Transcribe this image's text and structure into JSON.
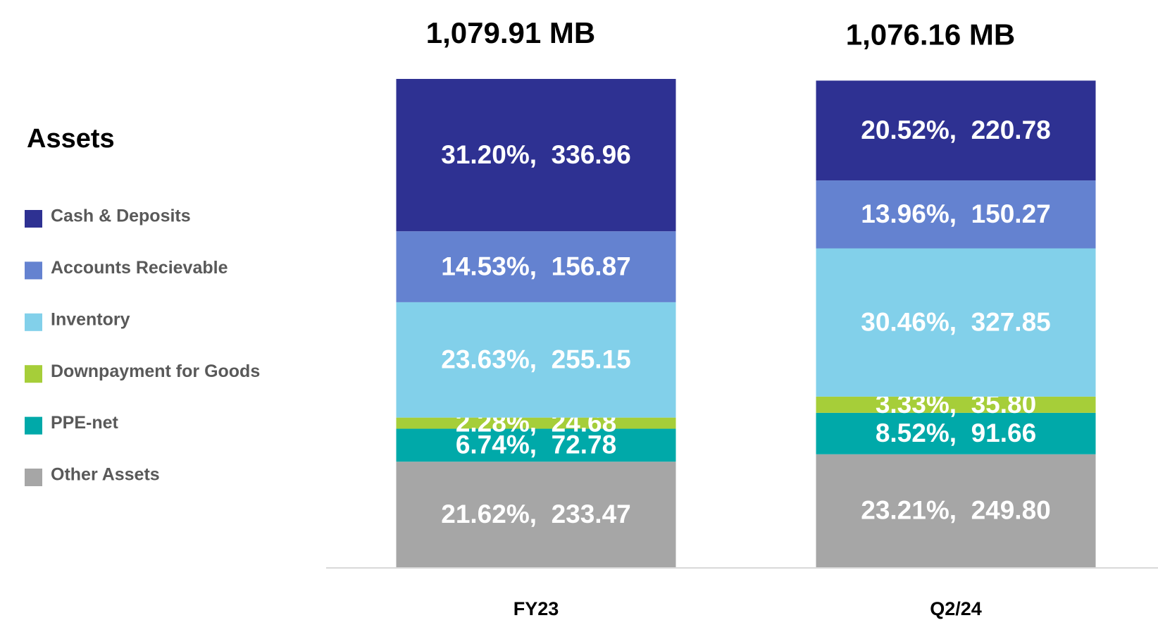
{
  "chart_data": {
    "type": "stacked_bar",
    "legend_title": "Assets",
    "categories": [
      "FY23",
      "Q2/24"
    ],
    "totals": [
      {
        "value": 1079.91,
        "label": "1,079.91 MB"
      },
      {
        "value": 1076.16,
        "label": "1,076.16 MB"
      }
    ],
    "series": [
      {
        "name": "Cash & Deposits",
        "color": "#2e3192",
        "values": [
          336.96,
          220.78
        ],
        "value_labels": [
          "31.20%,  336.96",
          "20.52%,  220.78"
        ]
      },
      {
        "name": "Accounts Recievable",
        "color": "#6482d0",
        "values": [
          156.87,
          150.27
        ],
        "value_labels": [
          "14.53%,  156.87",
          "13.96%,  150.27"
        ]
      },
      {
        "name": "Inventory",
        "color": "#82d0ea",
        "values": [
          255.15,
          327.85
        ],
        "value_labels": [
          "23.63%,  255.15",
          "30.46%,  327.85"
        ]
      },
      {
        "name": "Downpayment for Goods",
        "color": "#a6ce39",
        "values": [
          24.68,
          35.8
        ],
        "value_labels": [
          "2.28%,  24.68",
          "3.33%,  35.80"
        ]
      },
      {
        "name": "PPE-net",
        "color": "#00a9a9",
        "values": [
          72.78,
          91.66
        ],
        "value_labels": [
          "6.74%,  72.78",
          "8.52%,  91.66"
        ]
      },
      {
        "name": "Other Assets",
        "color": "#a6a6a6",
        "values": [
          233.47,
          249.8
        ],
        "value_labels": [
          "21.62%,  233.47",
          "23.21%,  249.80"
        ]
      }
    ],
    "legend": "left"
  }
}
